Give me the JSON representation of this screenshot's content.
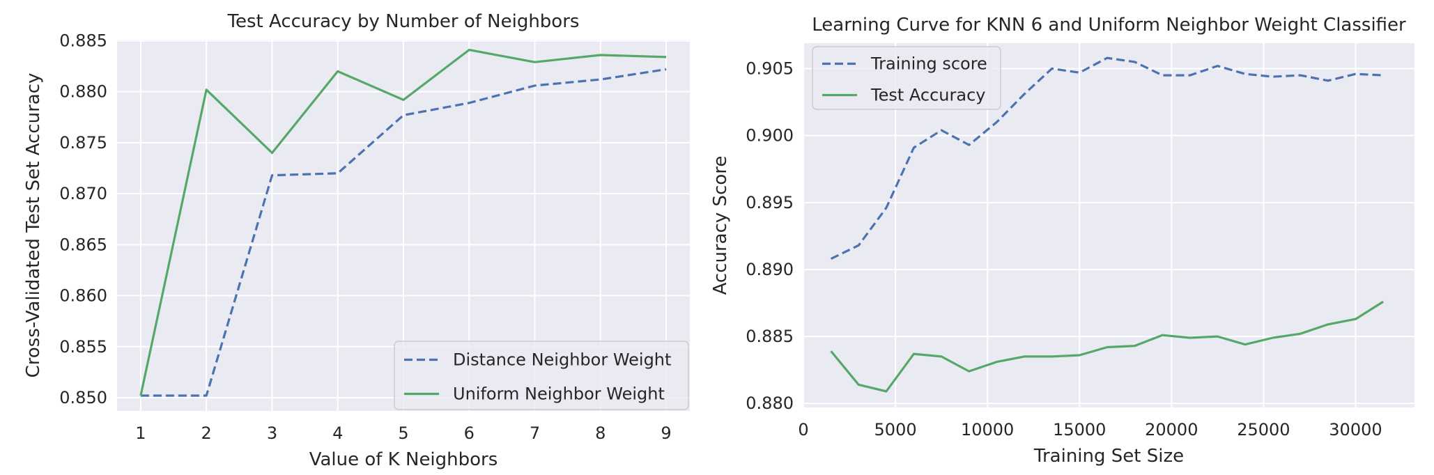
{
  "colors": {
    "background": "#eaeaf2",
    "grid": "#ffffff",
    "series_blue": "#4c72b0",
    "series_green": "#55a868"
  },
  "chart_data": [
    {
      "type": "line",
      "title": "Test Accuracy by Number of Neighbors",
      "xlabel": "Value of K Neighbors",
      "ylabel": "Cross-Validated Test Set Accuracy",
      "xlim": [
        0.64,
        9.36
      ],
      "ylim": [
        0.8487,
        0.8851
      ],
      "xticks": [
        1,
        2,
        3,
        4,
        5,
        6,
        7,
        8,
        9
      ],
      "yticks": [
        0.85,
        0.855,
        0.86,
        0.865,
        0.87,
        0.875,
        0.88,
        0.885
      ],
      "yticklabels": [
        "0.850",
        "0.855",
        "0.860",
        "0.865",
        "0.870",
        "0.875",
        "0.880",
        "0.885"
      ],
      "legend_position": "lower-right",
      "grid": true,
      "x": [
        1,
        2,
        3,
        4,
        5,
        6,
        7,
        8,
        9
      ],
      "series": [
        {
          "name": "Distance Neighbor Weight",
          "style": "dashed",
          "color": "#4c72b0",
          "values": [
            0.8502,
            0.8502,
            0.8718,
            0.872,
            0.8777,
            0.8789,
            0.8806,
            0.8812,
            0.8822
          ]
        },
        {
          "name": "Uniform Neighbor Weight",
          "style": "solid",
          "color": "#55a868",
          "values": [
            0.8502,
            0.8802,
            0.874,
            0.882,
            0.8792,
            0.8841,
            0.8829,
            0.8836,
            0.8834
          ]
        }
      ]
    },
    {
      "type": "line",
      "title": "Learning Curve for KNN 6 and Uniform Neighbor Weight Classifier",
      "xlabel": "Training Set Size",
      "ylabel": "Accuracy Score",
      "xlim": [
        0,
        33200
      ],
      "ylim": [
        0.8797,
        0.9069
      ],
      "xticks": [
        0,
        5000,
        10000,
        15000,
        20000,
        25000,
        30000
      ],
      "yticks": [
        0.88,
        0.885,
        0.89,
        0.895,
        0.9,
        0.905
      ],
      "yticklabels": [
        "0.880",
        "0.885",
        "0.890",
        "0.895",
        "0.900",
        "0.905"
      ],
      "legend_position": "upper-left",
      "grid": true,
      "x": [
        1500,
        3000,
        4500,
        6000,
        7500,
        9000,
        10500,
        12000,
        13500,
        15000,
        16500,
        18000,
        19500,
        21000,
        22500,
        24000,
        25500,
        27000,
        28500,
        30000,
        31500
      ],
      "series": [
        {
          "name": "Training score",
          "style": "dashed",
          "color": "#4c72b0",
          "values": [
            0.8908,
            0.8918,
            0.8946,
            0.8991,
            0.9004,
            0.8993,
            0.901,
            0.9031,
            0.905,
            0.9047,
            0.9058,
            0.9055,
            0.9045,
            0.9045,
            0.9052,
            0.9046,
            0.9044,
            0.9045,
            0.9041,
            0.9046,
            0.9045
          ]
        },
        {
          "name": "Test Accuracy",
          "style": "solid",
          "color": "#55a868",
          "values": [
            0.8839,
            0.8814,
            0.8809,
            0.8837,
            0.8835,
            0.8824,
            0.8831,
            0.8835,
            0.8835,
            0.8836,
            0.8842,
            0.8843,
            0.8851,
            0.8849,
            0.885,
            0.8844,
            0.8849,
            0.8852,
            0.8859,
            0.8863,
            0.8876
          ]
        }
      ]
    }
  ]
}
